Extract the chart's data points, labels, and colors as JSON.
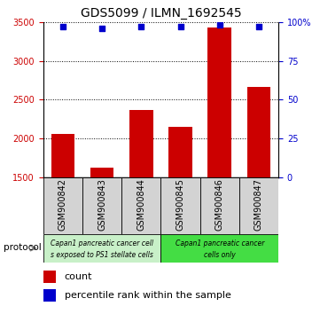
{
  "title": "GDS5099 / ILMN_1692545",
  "samples": [
    "GSM900842",
    "GSM900843",
    "GSM900844",
    "GSM900845",
    "GSM900846",
    "GSM900847"
  ],
  "counts": [
    2055,
    1620,
    2365,
    2150,
    3430,
    2660
  ],
  "percentile_ranks": [
    97,
    96,
    97,
    97,
    98,
    97
  ],
  "ylim_left": [
    1500,
    3500
  ],
  "yticks_left": [
    1500,
    2000,
    2500,
    3000,
    3500
  ],
  "ylim_right": [
    0,
    100
  ],
  "yticks_right": [
    0,
    25,
    50,
    75,
    100
  ],
  "bar_color": "#cc0000",
  "dot_color": "#0000cc",
  "bar_width": 0.6,
  "group1_color": "#c8f0c8",
  "group2_color": "#44dd44",
  "group1_text_line1": "Capan1 pancreatic cancer cell",
  "group1_text_line2": "s exposed to PS1 stellate cells",
  "group2_text_line1": "Capan1 pancreatic cancer",
  "group2_text_line2": "cells only",
  "protocol_label": "protocol",
  "legend_count_label": "count",
  "legend_pct_label": "percentile rank within the sample",
  "tick_color_left": "#cc0000",
  "tick_color_right": "#0000cc",
  "sample_box_color": "#d3d3d3",
  "fontsize_ticks": 7,
  "fontsize_title": 10,
  "fontsize_labels": 7,
  "fontsize_legend": 8
}
